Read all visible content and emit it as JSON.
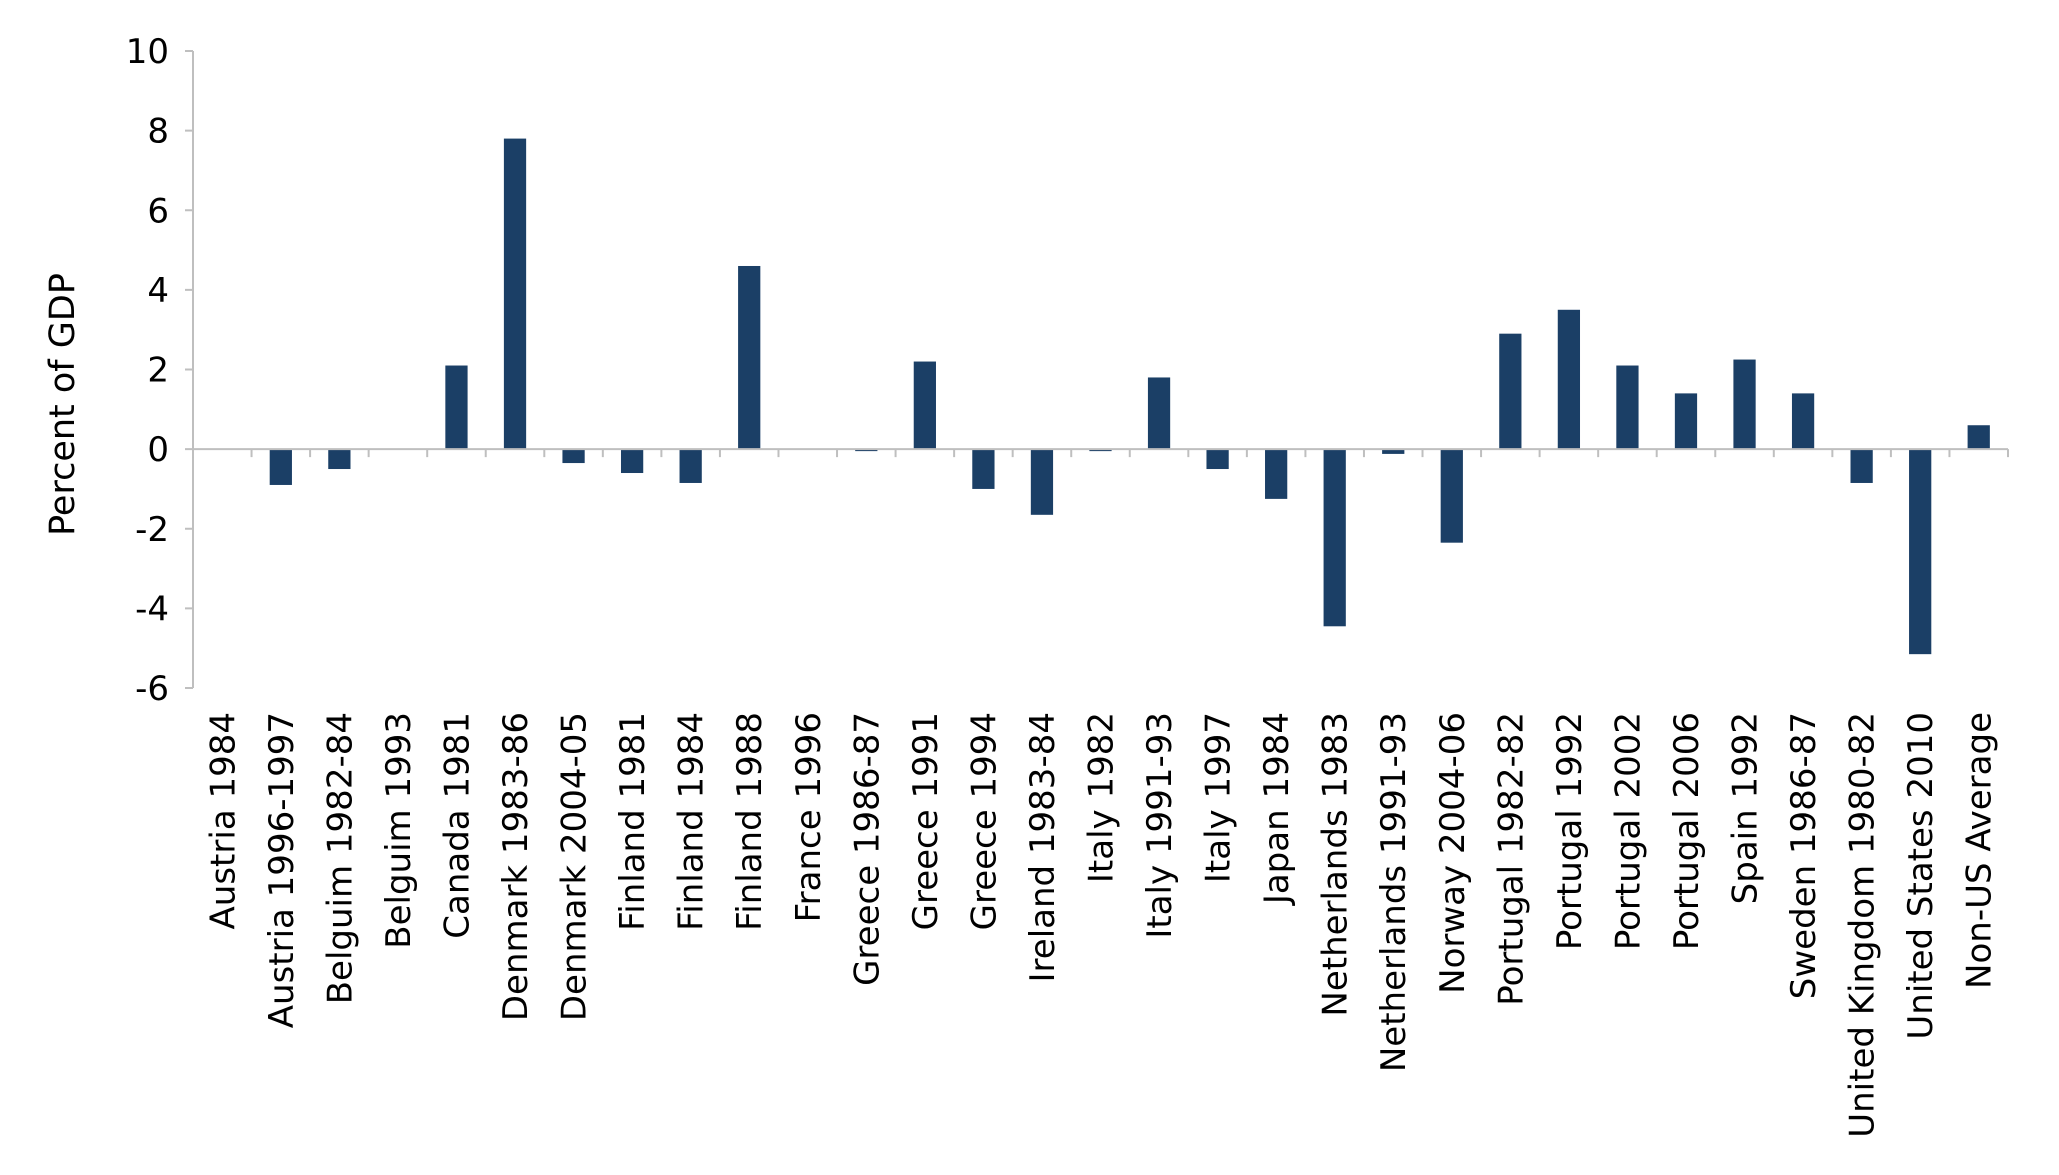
{
  "chart_data": {
    "type": "bar",
    "title": "",
    "xlabel": "",
    "ylabel": "Percent of GDP",
    "ylim": [
      -6,
      10
    ],
    "yticks": [
      10,
      8,
      6,
      4,
      2,
      0,
      -2,
      -4,
      -6
    ],
    "grid": false,
    "legend": "none",
    "bar_color": "#1b3f66",
    "categories": [
      "Austria 1984",
      "Austria 1996-1997",
      "Belguim 1982-84",
      "Belguim 1993",
      "Canada 1981",
      "Denmark 1983-86",
      "Denmark 2004-05",
      "Finland 1981",
      "Finland 1984",
      "Finland 1988",
      "France 1996",
      "Greece 1986-87",
      "Greece 1991",
      "Greece 1994",
      "Ireland 1983-84",
      "Italy 1982",
      "Italy 1991-93",
      "Italy 1997",
      "Japan 1984",
      "Netherlands 1983",
      "Netherlands 1991-93",
      "Norway 2004-06",
      "Portugal 1982-82",
      "Portugal 1992",
      "Portugal 2002",
      "Portugal 2006",
      "Spain 1992",
      "Sweden 1986-87",
      "United Kingdom 1980-82",
      "United States 2010",
      "Non-US Average"
    ],
    "values": [
      0,
      -0.9,
      -0.5,
      0,
      2.1,
      7.8,
      -0.35,
      -0.6,
      -0.85,
      4.6,
      0,
      -0.05,
      2.2,
      -1.0,
      -1.65,
      -0.05,
      1.8,
      -0.5,
      -1.25,
      -4.45,
      -0.12,
      -2.35,
      2.9,
      3.5,
      2.1,
      1.4,
      2.25,
      1.4,
      -0.85,
      -5.15,
      0.6
    ]
  }
}
